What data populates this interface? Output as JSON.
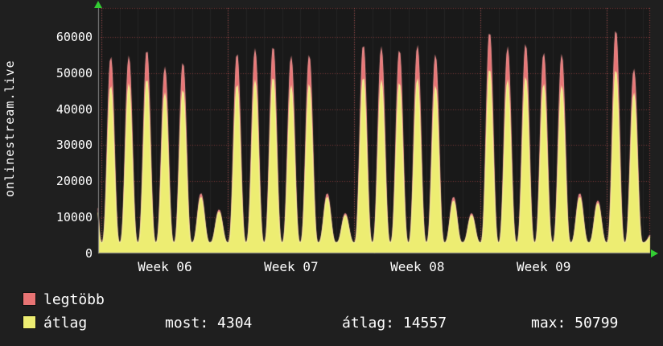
{
  "chart": {
    "side_label": "onlinestream.live"
  },
  "legend": {
    "series": [
      {
        "label": "legtöbb",
        "color": "#e87474"
      },
      {
        "label": "átlag",
        "color": "#eded72"
      }
    ],
    "stats": [
      {
        "text": "most: 4304"
      },
      {
        "text": "átlag: 14557"
      },
      {
        "text": "max: 50799"
      }
    ]
  },
  "chart_data": {
    "type": "area",
    "title": "onlinestream.live",
    "ylabel": "",
    "xlabel": "",
    "y_ticks": [
      0,
      10000,
      20000,
      30000,
      40000,
      50000,
      60000
    ],
    "y_max": 68000,
    "baseline": 3000,
    "spike_exponent": 3,
    "days_visible": 30.6,
    "start_day_phase": 0.8,
    "week_start_days": [
      1,
      8,
      15,
      22,
      29
    ],
    "week_labels": [
      {
        "label": "Week 06",
        "center_day": 4.5
      },
      {
        "label": "Week 07",
        "center_day": 11.5
      },
      {
        "label": "Week 08",
        "center_day": 18.5
      },
      {
        "label": "Week 09",
        "center_day": 25.5
      }
    ],
    "grid": {
      "h_color": "rgba(200,80,80,0.55)",
      "week_color": "rgba(215,90,90,0.75)",
      "day_color": "rgba(255,255,255,0.05)"
    },
    "plot_bg": "#191919",
    "axis_color": "#8a8a8a",
    "series": [
      {
        "name": "legtöbb",
        "fill": "#e87474",
        "stroke": "#f29090",
        "day_peaks": [
          50000,
          54000,
          54000,
          56000,
          51000,
          52500,
          16500,
          12000,
          55000,
          56000,
          57000,
          54000,
          54500,
          16500,
          11000,
          57500,
          56500,
          56000,
          57000,
          54500,
          15500,
          11000,
          61000,
          56500,
          57500,
          55000,
          54500,
          16500,
          14500,
          61500,
          50500,
          5500
        ]
      },
      {
        "name": "átlag",
        "fill": "#eded72",
        "stroke": "#f8f59a",
        "day_peaks": [
          44000,
          46000,
          46500,
          48000,
          44000,
          45000,
          15500,
          11500,
          46500,
          47500,
          48500,
          46000,
          46500,
          15500,
          10500,
          48500,
          47500,
          47000,
          48000,
          46000,
          14500,
          10500,
          50799,
          47500,
          48500,
          46500,
          46000,
          15500,
          13800,
          50500,
          44000,
          5000
        ]
      }
    ],
    "current_value": 4304,
    "average_value": 14557,
    "max_value": 50799
  }
}
